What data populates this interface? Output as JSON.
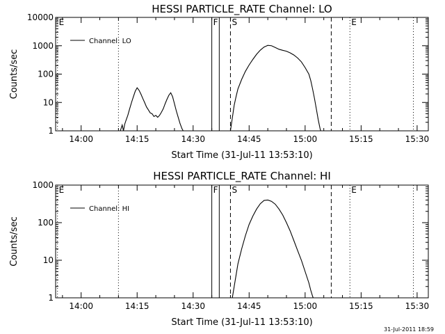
{
  "chart_data": [
    {
      "type": "line",
      "title": "HESSI PARTICLE_RATE Channel: LO",
      "xlabel": "Start Time (31-Jul-11 13:53:10)",
      "ylabel": "Counts/sec",
      "y_scale": "log",
      "ylim": [
        1,
        10000
      ],
      "y_ticks": [
        {
          "value": 1,
          "label": "1"
        },
        {
          "value": 10,
          "label": "10"
        },
        {
          "value": 100,
          "label": "100"
        },
        {
          "value": 1000,
          "label": "1000"
        },
        {
          "value": 10000,
          "label": "10000"
        }
      ],
      "xlim": [
        "13:53:10",
        "15:33"
      ],
      "x_ticks": [
        "14:00",
        "14:15",
        "14:30",
        "14:45",
        "15:00",
        "15:15",
        "15:30"
      ],
      "legend": {
        "position": "top-left",
        "entries": [
          "Channel: LO"
        ]
      },
      "series": [
        {
          "name": "Channel: LO",
          "points": [
            [
              "14:10:30",
              1
            ],
            [
              "14:11",
              1.6
            ],
            [
              "14:11:20",
              1
            ],
            [
              "14:11:40",
              1.7
            ],
            [
              "14:12",
              2.3
            ],
            [
              "14:12:30",
              3.5
            ],
            [
              "14:13",
              6
            ],
            [
              "14:13:30",
              10
            ],
            [
              "14:14",
              16
            ],
            [
              "14:14:30",
              25
            ],
            [
              "14:15",
              33
            ],
            [
              "14:15:30",
              27
            ],
            [
              "14:16",
              20
            ],
            [
              "14:16:30",
              14
            ],
            [
              "14:17",
              10
            ],
            [
              "14:17:30",
              7
            ],
            [
              "14:18",
              5.5
            ],
            [
              "14:18:30",
              4.3
            ],
            [
              "14:19",
              4
            ],
            [
              "14:19:30",
              3.2
            ],
            [
              "14:20",
              3.5
            ],
            [
              "14:20:30",
              3
            ],
            [
              "14:21",
              3.5
            ],
            [
              "14:21:30",
              4.5
            ],
            [
              "14:22",
              6
            ],
            [
              "14:22:30",
              9
            ],
            [
              "14:23",
              13
            ],
            [
              "14:23:30",
              18
            ],
            [
              "14:24",
              22
            ],
            [
              "14:24:30",
              16
            ],
            [
              "14:25",
              9
            ],
            [
              "14:25:30",
              5
            ],
            [
              "14:26",
              3
            ],
            [
              "14:26:30",
              1.8
            ],
            [
              "14:27",
              1.2
            ],
            [
              "14:27:20",
              1
            ],
            [
              "14:40",
              1
            ],
            [
              "14:40:20",
              2
            ],
            [
              "14:40:40",
              4
            ],
            [
              "14:41",
              8
            ],
            [
              "14:41:30",
              16
            ],
            [
              "14:42",
              30
            ],
            [
              "14:43",
              65
            ],
            [
              "14:44",
              125
            ],
            [
              "14:45",
              210
            ],
            [
              "14:46",
              330
            ],
            [
              "14:47",
              500
            ],
            [
              "14:48",
              700
            ],
            [
              "14:49",
              900
            ],
            [
              "14:50",
              1030
            ],
            [
              "14:51",
              1000
            ],
            [
              "14:52",
              870
            ],
            [
              "14:53",
              750
            ],
            [
              "14:54",
              690
            ],
            [
              "14:55",
              640
            ],
            [
              "14:56",
              560
            ],
            [
              "14:57",
              470
            ],
            [
              "14:58",
              370
            ],
            [
              "14:59",
              270
            ],
            [
              "15:00",
              170
            ],
            [
              "15:01",
              100
            ],
            [
              "15:01:30",
              60
            ],
            [
              "15:02",
              30
            ],
            [
              "15:02:30",
              14
            ],
            [
              "15:03",
              6
            ],
            [
              "15:03:30",
              2.5
            ],
            [
              "15:04",
              1.2
            ],
            [
              "15:04:10",
              1
            ]
          ]
        }
      ],
      "markers": [
        {
          "label": "E",
          "time": "13:53:40",
          "style": "dotted"
        },
        {
          "label": "",
          "time": "14:10",
          "style": "dotted"
        },
        {
          "label": "F",
          "time": "14:35",
          "style": "solid"
        },
        {
          "label": "",
          "time": "14:37",
          "style": "solid"
        },
        {
          "label": "S",
          "time": "14:40",
          "style": "dashed"
        },
        {
          "label": "",
          "time": "15:07",
          "style": "dashed"
        },
        {
          "label": "E",
          "time": "15:12",
          "style": "dotted"
        },
        {
          "label": "",
          "time": "15:29",
          "style": "dotted"
        }
      ]
    },
    {
      "type": "line",
      "title": "HESSI PARTICLE_RATE Channel: HI",
      "xlabel": "Start Time (31-Jul-11 13:53:10)",
      "ylabel": "Counts/sec",
      "y_scale": "log",
      "ylim": [
        1,
        1000
      ],
      "y_ticks": [
        {
          "value": 1,
          "label": "1"
        },
        {
          "value": 10,
          "label": "10"
        },
        {
          "value": 100,
          "label": "100"
        },
        {
          "value": 1000,
          "label": "1000"
        }
      ],
      "xlim": [
        "13:53:10",
        "15:33"
      ],
      "x_ticks": [
        "14:00",
        "14:15",
        "14:30",
        "14:45",
        "15:00",
        "15:15",
        "15:30"
      ],
      "legend": {
        "position": "top-left",
        "entries": [
          "Channel: HI"
        ]
      },
      "series": [
        {
          "name": "Channel: HI",
          "points": [
            [
              "14:40:30",
              1
            ],
            [
              "14:41",
              2
            ],
            [
              "14:41:30",
              4
            ],
            [
              "14:42",
              8
            ],
            [
              "14:43",
              20
            ],
            [
              "14:44",
              45
            ],
            [
              "14:45",
              90
            ],
            [
              "14:46",
              150
            ],
            [
              "14:47",
              230
            ],
            [
              "14:48",
              320
            ],
            [
              "14:49",
              390
            ],
            [
              "14:50",
              400
            ],
            [
              "14:51",
              370
            ],
            [
              "14:52",
              310
            ],
            [
              "14:53",
              230
            ],
            [
              "14:54",
              160
            ],
            [
              "14:55",
              100
            ],
            [
              "14:56",
              60
            ],
            [
              "14:57",
              33
            ],
            [
              "14:58",
              18
            ],
            [
              "14:59",
              10
            ],
            [
              "15:00",
              5
            ],
            [
              "15:01",
              2.5
            ],
            [
              "15:01:30",
              1.6
            ],
            [
              "15:02",
              1.1
            ],
            [
              "15:02:10",
              1
            ]
          ]
        }
      ],
      "markers": [
        {
          "label": "E",
          "time": "13:53:40",
          "style": "dotted"
        },
        {
          "label": "",
          "time": "14:10",
          "style": "dotted"
        },
        {
          "label": "F",
          "time": "14:35",
          "style": "solid"
        },
        {
          "label": "",
          "time": "14:37",
          "style": "solid"
        },
        {
          "label": "S",
          "time": "14:40",
          "style": "dashed"
        },
        {
          "label": "",
          "time": "15:07",
          "style": "dashed"
        },
        {
          "label": "E",
          "time": "15:12",
          "style": "dotted"
        },
        {
          "label": "",
          "time": "15:29",
          "style": "dotted"
        }
      ]
    }
  ],
  "footer": {
    "timestamp": "31-Jul-2011 18:59"
  },
  "colors": {
    "background": "#ffffff",
    "foreground": "#000000"
  }
}
